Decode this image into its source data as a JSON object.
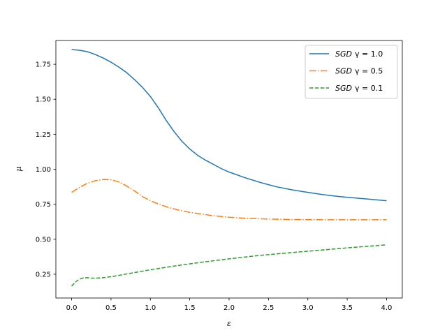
{
  "chart_data": {
    "type": "line",
    "title": "",
    "xlabel": "ε",
    "ylabel": "μ",
    "xlim": [
      -0.2,
      4.2
    ],
    "ylim": [
      0.08,
      1.92
    ],
    "xticks": [
      0.0,
      0.5,
      1.0,
      1.5,
      2.0,
      2.5,
      3.0,
      3.5,
      4.0
    ],
    "xtick_labels": [
      "0.0",
      "0.5",
      "1.0",
      "1.5",
      "2.0",
      "2.5",
      "3.0",
      "3.5",
      "4.0"
    ],
    "yticks": [
      0.25,
      0.5,
      0.75,
      1.0,
      1.25,
      1.5,
      1.75
    ],
    "ytick_labels": [
      "0.25",
      "0.50",
      "0.75",
      "1.00",
      "1.25",
      "1.50",
      "1.75"
    ],
    "grid": false,
    "legend_position": "top-right",
    "series": [
      {
        "name": "SGD γ = 1.0",
        "name_parts": [
          "SGD",
          "γ = 1.0"
        ],
        "color": "#1f77b4",
        "style": "solid",
        "x": [
          0,
          0.1,
          0.2,
          0.3,
          0.4,
          0.5,
          0.6,
          0.7,
          0.8,
          0.9,
          1.0,
          1.1,
          1.2,
          1.3,
          1.4,
          1.5,
          1.6,
          1.7,
          1.8,
          1.9,
          2.0,
          2.2,
          2.4,
          2.6,
          2.8,
          3.0,
          3.2,
          3.4,
          3.6,
          3.8,
          4.0
        ],
        "y": [
          1.855,
          1.85,
          1.84,
          1.82,
          1.795,
          1.765,
          1.73,
          1.69,
          1.64,
          1.585,
          1.52,
          1.44,
          1.35,
          1.27,
          1.2,
          1.145,
          1.1,
          1.065,
          1.035,
          1.005,
          0.98,
          0.94,
          0.905,
          0.875,
          0.853,
          0.835,
          0.818,
          0.805,
          0.795,
          0.785,
          0.775
        ]
      },
      {
        "name": "SGD γ = 0.5",
        "name_parts": [
          "SGD",
          "γ = 0.5"
        ],
        "color": "#ff7f0e",
        "style": "dashdot",
        "x": [
          0,
          0.1,
          0.2,
          0.3,
          0.4,
          0.5,
          0.6,
          0.7,
          0.8,
          0.9,
          1.0,
          1.1,
          1.2,
          1.3,
          1.4,
          1.5,
          1.6,
          1.8,
          2.0,
          2.2,
          2.4,
          2.6,
          2.8,
          3.0,
          3.2,
          3.4,
          3.6,
          3.8,
          4.0
        ],
        "y": [
          0.835,
          0.87,
          0.9,
          0.918,
          0.927,
          0.925,
          0.91,
          0.88,
          0.845,
          0.805,
          0.775,
          0.752,
          0.733,
          0.717,
          0.703,
          0.692,
          0.684,
          0.668,
          0.657,
          0.65,
          0.646,
          0.643,
          0.641,
          0.64,
          0.639,
          0.639,
          0.639,
          0.639,
          0.639
        ]
      },
      {
        "name": "SGD γ = 0.1",
        "name_parts": [
          "SGD",
          "γ = 0.1"
        ],
        "color": "#2ca02c",
        "style": "dashed",
        "x": [
          0,
          0.05,
          0.1,
          0.15,
          0.2,
          0.25,
          0.3,
          0.4,
          0.5,
          0.7,
          1.0,
          1.3,
          1.6,
          2.0,
          2.4,
          2.8,
          3.2,
          3.6,
          4.0
        ],
        "y": [
          0.165,
          0.195,
          0.215,
          0.224,
          0.225,
          0.222,
          0.222,
          0.225,
          0.232,
          0.252,
          0.282,
          0.308,
          0.332,
          0.36,
          0.385,
          0.405,
          0.424,
          0.443,
          0.46
        ]
      }
    ]
  }
}
